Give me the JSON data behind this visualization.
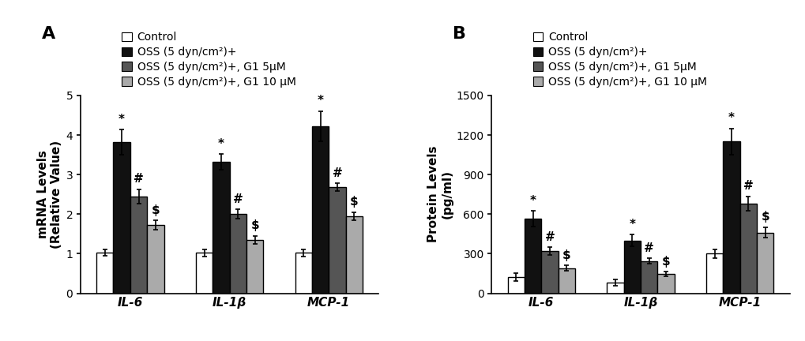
{
  "panel_A": {
    "title": "A",
    "ylabel": "mRNA Levels\n(Relative Value)",
    "ylim": [
      0,
      5
    ],
    "yticks": [
      0,
      1,
      2,
      3,
      4,
      5
    ],
    "groups": [
      "IL-6",
      "IL-1β",
      "MCP-1"
    ],
    "series": {
      "Control": [
        1.03,
        1.02,
        1.02
      ],
      "OSS": [
        3.82,
        3.32,
        4.22
      ],
      "G1_5uM": [
        2.45,
        2.0,
        2.68
      ],
      "G1_10uM": [
        1.72,
        1.35,
        1.95
      ]
    },
    "errors": {
      "Control": [
        0.08,
        0.09,
        0.09
      ],
      "OSS": [
        0.32,
        0.2,
        0.38
      ],
      "G1_5uM": [
        0.18,
        0.12,
        0.1
      ],
      "G1_10uM": [
        0.12,
        0.1,
        0.1
      ]
    },
    "annotations": {
      "OSS": [
        "*",
        "*",
        "*"
      ],
      "G1_5uM": [
        "#",
        "#",
        "#"
      ],
      "G1_10uM": [
        "$",
        "$",
        "$"
      ]
    }
  },
  "panel_B": {
    "title": "B",
    "ylabel": "Protein Levels\n(pg/ml)",
    "ylim": [
      0,
      1500
    ],
    "yticks": [
      0,
      300,
      600,
      900,
      1200,
      1500
    ],
    "groups": [
      "IL-6",
      "IL-1β",
      "MCP-1"
    ],
    "series": {
      "Control": [
        125,
        80,
        300
      ],
      "OSS": [
        565,
        400,
        1150
      ],
      "G1_5uM": [
        320,
        245,
        680
      ],
      "G1_10uM": [
        190,
        145,
        460
      ]
    },
    "errors": {
      "Control": [
        30,
        25,
        35
      ],
      "OSS": [
        60,
        45,
        100
      ],
      "G1_5uM": [
        30,
        20,
        55
      ],
      "G1_10uM": [
        20,
        18,
        40
      ]
    },
    "annotations": {
      "OSS": [
        "*",
        "*",
        "*"
      ],
      "G1_5uM": [
        "#",
        "#",
        "#"
      ],
      "G1_10uM": [
        "$",
        "$",
        "$"
      ]
    }
  },
  "colors": {
    "Control": "#ffffff",
    "OSS": "#111111",
    "G1_5uM": "#555555",
    "G1_10uM": "#aaaaaa"
  },
  "legend_labels": {
    "Control": "Control",
    "OSS": "OSS (5 dyn/cm²)+",
    "G1_5uM": "OSS (5 dyn/cm²)+, G1 5μM",
    "G1_10uM": "OSS (5 dyn/cm²)+, G1 10 μM"
  },
  "bar_width": 0.17,
  "edge_color": "#000000",
  "annotation_fontsize": 11,
  "label_fontsize": 11,
  "tick_fontsize": 10,
  "title_fontsize": 16,
  "legend_fontsize": 10
}
